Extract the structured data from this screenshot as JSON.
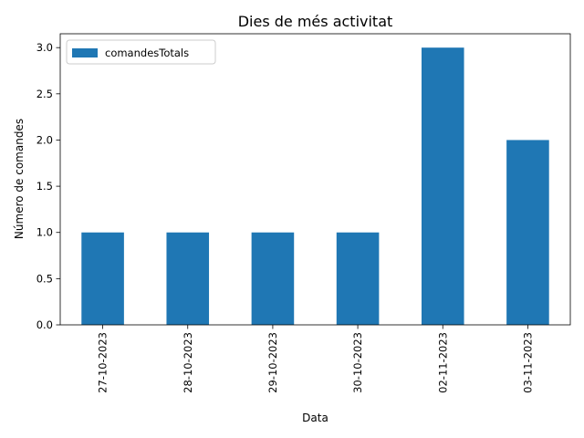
{
  "chart_data": {
    "type": "bar",
    "title": "Dies de més activitat",
    "xlabel": "Data",
    "ylabel": "Número de comandes",
    "categories": [
      "27-10-2023",
      "28-10-2023",
      "29-10-2023",
      "30-10-2023",
      "02-11-2023",
      "03-11-2023"
    ],
    "series": [
      {
        "name": "comandesTotals",
        "values": [
          1,
          1,
          1,
          1,
          3,
          2
        ]
      }
    ],
    "ylim": [
      0,
      3.15
    ],
    "yticks": [
      "0.0",
      "0.5",
      "1.0",
      "1.5",
      "2.0",
      "2.5",
      "3.0"
    ],
    "grid": false,
    "legend": "top-left",
    "bar_color": "#1f77b4"
  }
}
